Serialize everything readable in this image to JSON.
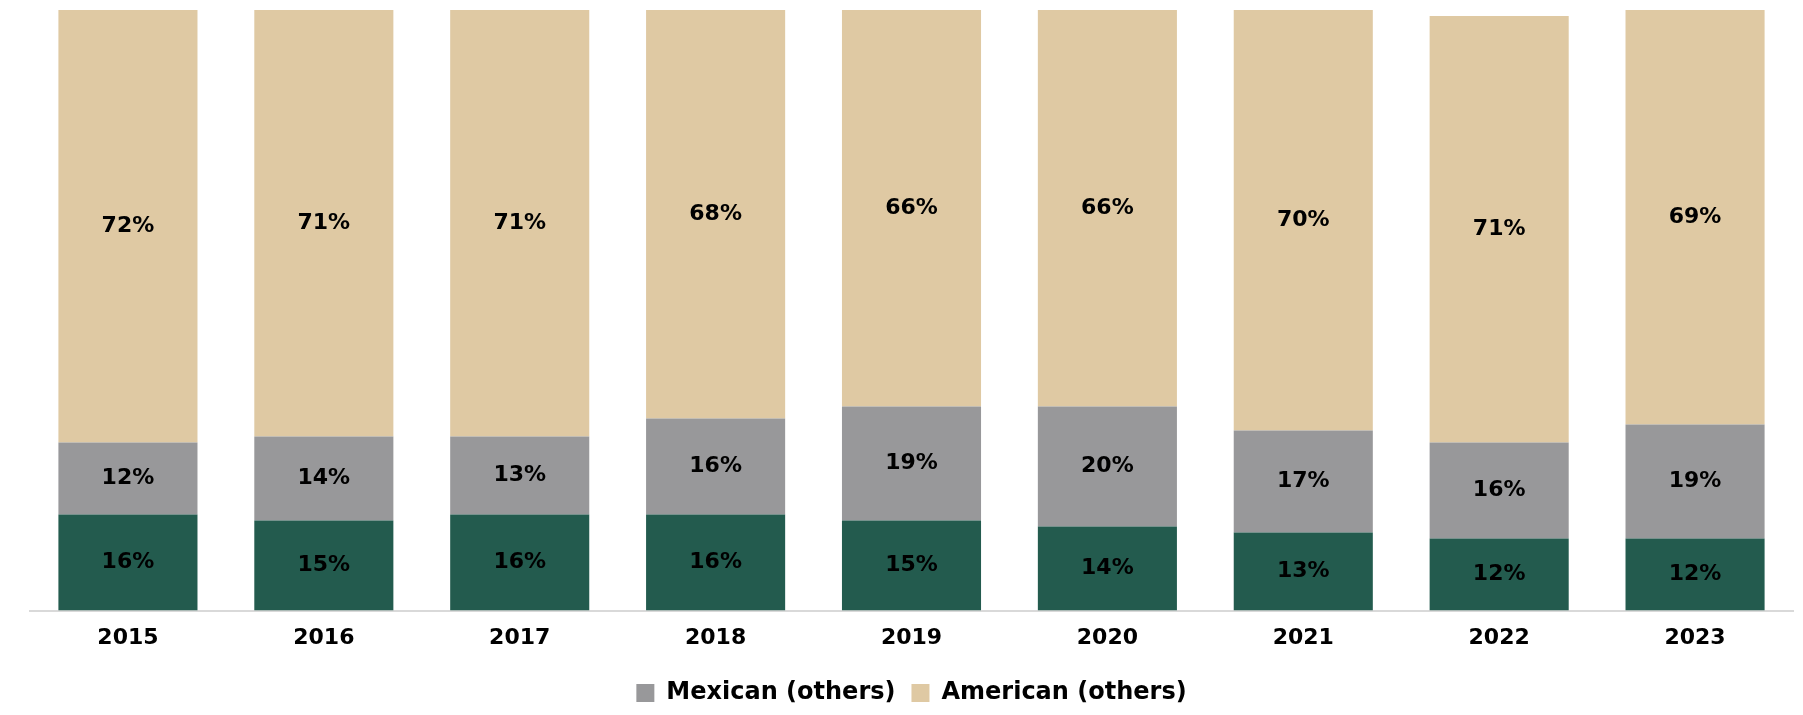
{
  "chart_data": {
    "type": "bar",
    "stacked": true,
    "categories": [
      "2015",
      "2016",
      "2017",
      "2018",
      "2019",
      "2020",
      "2021",
      "2022",
      "2023"
    ],
    "series": [
      {
        "color": "#235b4e",
        "values": [
          16,
          15,
          16,
          16,
          15,
          14,
          13,
          12,
          12
        ],
        "value_labels": [
          "16%",
          "15%",
          "16%",
          "16%",
          "15%",
          "14%",
          "13%",
          "12%",
          "12%"
        ]
      },
      {
        "name": "Mexican (others)",
        "color": "#98989a",
        "values": [
          12,
          14,
          13,
          16,
          19,
          20,
          17,
          16,
          19
        ],
        "value_labels": [
          "12%",
          "14%",
          "13%",
          "16%",
          "19%",
          "20%",
          "17%",
          "16%",
          "19%"
        ]
      },
      {
        "name": "American (others)",
        "color": "#dfc9a3",
        "values": [
          72,
          71,
          71,
          68,
          66,
          66,
          70,
          71,
          69
        ],
        "value_labels": [
          "72%",
          "71%",
          "71%",
          "68%",
          "66%",
          "66%",
          "70%",
          "71%",
          "69%"
        ]
      }
    ],
    "legend": "bottom",
    "grid": false
  }
}
